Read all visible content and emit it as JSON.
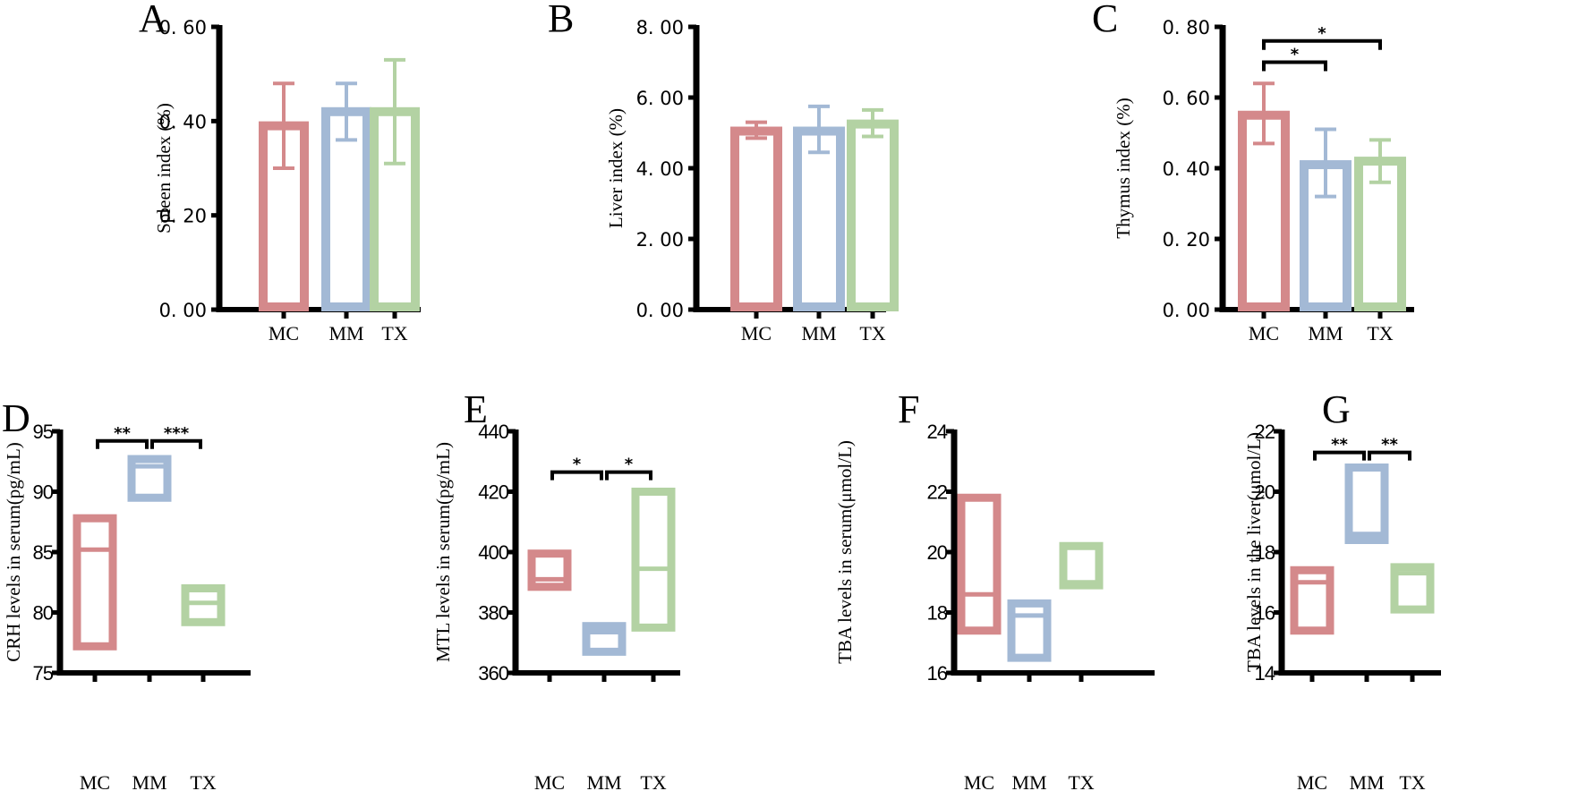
{
  "colors": {
    "MC": "#d4898b",
    "MM": "#a3b9d5",
    "TX": "#b3d2a3",
    "axis": "#000000"
  },
  "chart_data": [
    {
      "panel": "A",
      "type": "bar",
      "ylabel": "Spleen index (%)",
      "categories": [
        "MC",
        "MM",
        "TX"
      ],
      "ylim": [
        0,
        0.6
      ],
      "yticks": [
        0,
        0.2,
        0.4,
        0.6
      ],
      "ytick_labels": [
        "0. 00",
        "0. 20",
        "0. 40",
        "0. 60"
      ],
      "values": [
        0.39,
        0.42,
        0.42
      ],
      "err_low": [
        0.3,
        0.36,
        0.31
      ],
      "err_high": [
        0.48,
        0.48,
        0.53
      ],
      "significance": []
    },
    {
      "panel": "B",
      "type": "bar",
      "ylabel": "Liver index (%)",
      "categories": [
        "MC",
        "MM",
        "TX"
      ],
      "ylim": [
        0,
        8
      ],
      "yticks": [
        0,
        2,
        4,
        6,
        8
      ],
      "ytick_labels": [
        "0. 00",
        "2. 00",
        "4. 00",
        "6. 00",
        "8. 00"
      ],
      "values": [
        5.05,
        5.05,
        5.25
      ],
      "err_low": [
        4.85,
        4.45,
        4.9
      ],
      "err_high": [
        5.3,
        5.75,
        5.65
      ],
      "significance": []
    },
    {
      "panel": "C",
      "type": "bar",
      "ylabel": "Thymus index (%)",
      "categories": [
        "MC",
        "MM",
        "TX"
      ],
      "ylim": [
        0,
        0.8
      ],
      "yticks": [
        0,
        0.2,
        0.4,
        0.6,
        0.8
      ],
      "ytick_labels": [
        "0. 00",
        "0. 20",
        "0. 40",
        "0. 60",
        "0. 80"
      ],
      "values": [
        0.55,
        0.41,
        0.42
      ],
      "err_low": [
        0.47,
        0.32,
        0.36
      ],
      "err_high": [
        0.64,
        0.51,
        0.48
      ],
      "significance": [
        {
          "from": "MC",
          "to": "MM",
          "label": "*",
          "level": 0.7
        },
        {
          "from": "MC",
          "to": "TX",
          "label": "*",
          "level": 0.76
        }
      ]
    },
    {
      "panel": "D",
      "type": "box",
      "ylabel": "CRH levels in serum(pg/mL)",
      "categories": [
        "MC",
        "MM",
        "TX"
      ],
      "ylim": [
        75,
        95
      ],
      "yticks": [
        75,
        80,
        85,
        90,
        95
      ],
      "ytick_labels": [
        "75",
        "80",
        "85",
        "90",
        "95"
      ],
      "box_low": [
        77.2,
        89.5,
        79.2
      ],
      "box_high": [
        87.8,
        92.7,
        82.0
      ],
      "median": [
        85.2,
        92.1,
        80.8
      ],
      "significance": [
        {
          "from": "MC",
          "to": "MM",
          "label": "**",
          "level": 94.2
        },
        {
          "from": "MM",
          "to": "TX",
          "label": "***",
          "level": 94.2
        }
      ]
    },
    {
      "panel": "E",
      "type": "box",
      "ylabel": "MTL levels in serum(pg/mL)",
      "categories": [
        "MC",
        "MM",
        "TX"
      ],
      "ylim": [
        360,
        440
      ],
      "yticks": [
        360,
        380,
        400,
        420,
        440
      ],
      "ytick_labels": [
        "360",
        "380",
        "400",
        "420",
        "440"
      ],
      "box_low": [
        388.5,
        367,
        375
      ],
      "box_high": [
        399.5,
        375.5,
        420
      ],
      "median": [
        391,
        373.5,
        394.5
      ],
      "significance": [
        {
          "from": "MC",
          "to": "MM",
          "label": "*",
          "level": 426.5
        },
        {
          "from": "MM",
          "to": "TX",
          "label": "*",
          "level": 426.5
        }
      ]
    },
    {
      "panel": "F",
      "type": "box",
      "ylabel": "TBA levels in serum(μmol/L)",
      "categories": [
        "MC",
        "MM",
        "TX"
      ],
      "ylim": [
        16,
        24
      ],
      "yticks": [
        16,
        18,
        20,
        22,
        24
      ],
      "ytick_labels": [
        "16",
        "18",
        "20",
        "22",
        "24"
      ],
      "box_low": [
        17.4,
        16.5,
        18.9
      ],
      "box_high": [
        21.8,
        18.3,
        20.2
      ],
      "median": [
        18.6,
        17.9,
        19.0
      ],
      "significance": []
    },
    {
      "panel": "G",
      "type": "box",
      "ylabel": "TBA levels in the liver(μmol/L)",
      "categories": [
        "MC",
        "MM",
        "TX"
      ],
      "ylim": [
        14,
        22
      ],
      "yticks": [
        14,
        16,
        18,
        20,
        22
      ],
      "ytick_labels": [
        "14",
        "16",
        "18",
        "20",
        "22"
      ],
      "box_low": [
        15.4,
        18.4,
        16.1
      ],
      "box_high": [
        17.4,
        20.8,
        17.5
      ],
      "median": [
        17.0,
        18.6,
        17.3
      ],
      "significance": [
        {
          "from": "MC",
          "to": "MM",
          "label": "**",
          "level": 21.3
        },
        {
          "from": "MM",
          "to": "TX",
          "label": "**",
          "level": 21.3
        }
      ]
    }
  ]
}
